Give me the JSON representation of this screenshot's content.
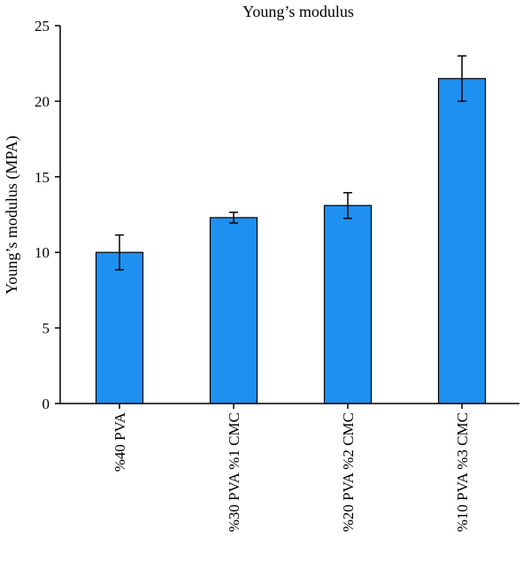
{
  "chart_data": {
    "type": "bar",
    "title": "Young’s modulus",
    "ylabel": "Young’s modulus (MPA)",
    "xlabel": "",
    "ylim": [
      0,
      25
    ],
    "yticks": [
      0,
      5,
      10,
      15,
      20,
      25
    ],
    "categories": [
      "%40 PVA",
      "%30 PVA %1 CMC",
      "%20 PVA %2 CMC",
      "%10 PVA %3 CMC"
    ],
    "values": [
      10.0,
      12.3,
      13.1,
      21.5
    ],
    "errors": [
      1.15,
      0.35,
      0.85,
      1.5
    ],
    "bar_color": "#1E90F0",
    "grid": false,
    "legend": "none"
  }
}
